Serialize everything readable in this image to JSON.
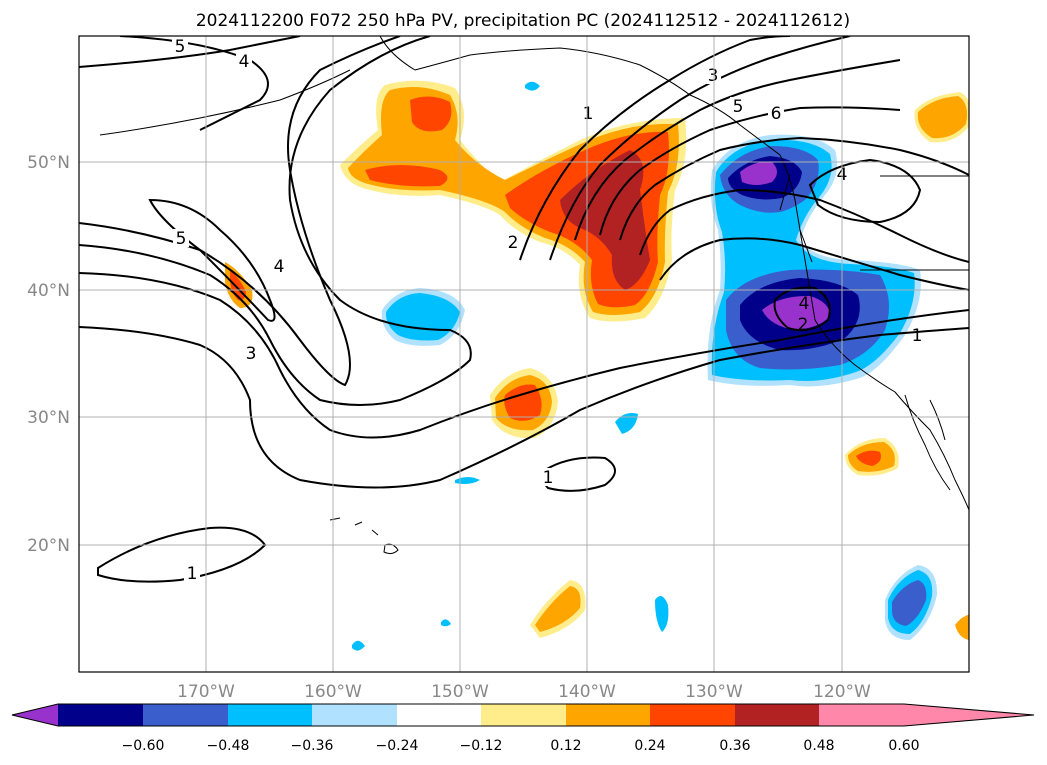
{
  "title": "2024112200 F072 250 hPa PV, precipitation PC (2024112512 - 2024112612)",
  "axes": {
    "lat_labels": [
      "50°N",
      "40°N",
      "30°N",
      "20°N"
    ],
    "lon_labels": [
      "170°W",
      "160°W",
      "150°W",
      "140°W",
      "130°W",
      "120°W"
    ]
  },
  "colorbar": {
    "colors": [
      "#9932cc",
      "#00008b",
      "#3a5fcd",
      "#00bfff",
      "#b0e2ff",
      "#ffffff",
      "#ffec8b",
      "#ffa500",
      "#ff4500",
      "#b22222",
      "#ff88aa"
    ],
    "tick_labels": [
      "−0.60",
      "−0.48",
      "−0.36",
      "−0.24",
      "−0.12",
      "0.12",
      "0.24",
      "0.36",
      "0.48",
      "0.60"
    ]
  },
  "contour_labels": [
    "5",
    "4",
    "5",
    "4",
    "3",
    "1",
    "2",
    "3",
    "5",
    "6",
    "4",
    "4",
    "2",
    "1",
    "1",
    "1"
  ]
}
